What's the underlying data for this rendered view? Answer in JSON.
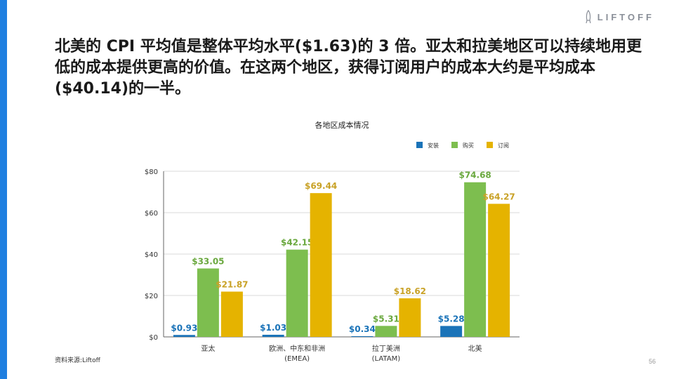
{
  "brand": {
    "name": "LIFTOFF",
    "accent_color": "#1f7fe0"
  },
  "headline": "北美的 CPI 平均值是整体平均水平($1.63)的 3 倍。亚太和拉美地区可以持续地用更低的成本提供更高的价值。在这两个地区，获得订阅用户的成本大约是平均成本($40.14)的一半。",
  "source": "资料来源:Liftoff",
  "page_number": "56",
  "chart_data": {
    "type": "bar",
    "title": "各地区成本情况",
    "categories": [
      [
        "亚太"
      ],
      [
        "欧洲、中东和非洲",
        "(EMEA)"
      ],
      [
        "拉丁美洲",
        "(LATAM)"
      ],
      [
        "北美"
      ]
    ],
    "series": [
      {
        "name": "安装",
        "color": "#1a73b8",
        "values": [
          0.93,
          1.03,
          0.34,
          5.28
        ],
        "labels": [
          "$0.93",
          "$1.03",
          "$0.34",
          "$5.28"
        ]
      },
      {
        "name": "购买",
        "color": "#7dbe4f",
        "values": [
          33.05,
          42.15,
          5.31,
          74.68
        ],
        "labels": [
          "$33.05",
          "$42.15",
          "$5.31",
          "$74.68"
        ]
      },
      {
        "name": "订阅",
        "color": "#e5b300",
        "values": [
          21.87,
          69.44,
          18.62,
          64.27
        ],
        "labels": [
          "$21.87",
          "$69.44",
          "$18.62",
          "$64.27"
        ]
      }
    ],
    "label_colors": [
      "#1a73b8",
      "#6aa83e",
      "#c9a227"
    ],
    "ylim": [
      0,
      80
    ],
    "yticks": [
      0,
      20,
      40,
      60,
      80
    ],
    "ytick_labels": [
      "$0",
      "$20",
      "$40",
      "$60",
      "$80"
    ],
    "grid": true,
    "legend_position": "top-right"
  }
}
